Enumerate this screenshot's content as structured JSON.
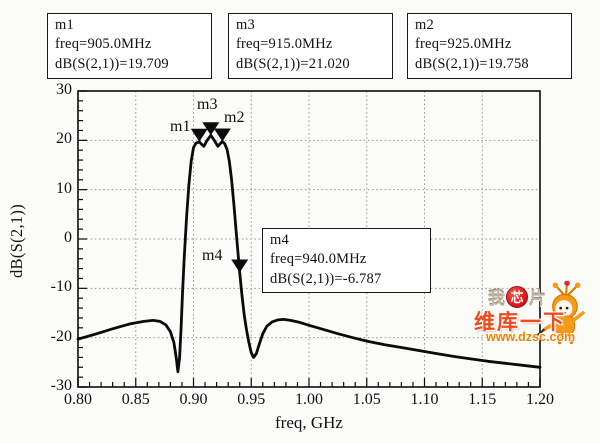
{
  "marker_boxes": {
    "m1": {
      "title": "m1",
      "freq": "freq=905.0MHz",
      "value": "dB(S(2,1))=19.709"
    },
    "m3": {
      "title": "m3",
      "freq": "freq=915.0MHz",
      "value": "dB(S(2,1))=21.020"
    },
    "m2": {
      "title": "m2",
      "freq": "freq=925.0MHz",
      "value": "dB(S(2,1))=19.758"
    },
    "m4": {
      "title": "m4",
      "freq": "freq=940.0MHz",
      "value": "dB(S(2,1))=-6.787"
    }
  },
  "watermark": {
    "row1_left": "我",
    "row1_badge": "芯",
    "row1_right": "片",
    "row2": "维库一下",
    "row3": "www.dzsc.com",
    "colors": {
      "badge_red": "#d91218",
      "title_orange_red": "#ee4b1e",
      "url_orange": "#f08200",
      "mascot_orange": "#f59b18"
    }
  },
  "chart_data": {
    "type": "line",
    "title": "",
    "xlabel": "freq, GHz",
    "ylabel": "dB(S(2,1))",
    "xlim": [
      0.8,
      1.2
    ],
    "ylim": [
      -30,
      30
    ],
    "grid": "dotted major gridlines on",
    "x_tick_labels": [
      "0.80",
      "0.85",
      "0.90",
      "0.95",
      "1.00",
      "1.05",
      "1.10",
      "1.15",
      "1.20"
    ],
    "y_tick_labels": [
      "30",
      "20",
      "10",
      "0",
      "-10",
      "-20",
      "-30"
    ],
    "x_major_step": 0.05,
    "x_minor_step": 0.01,
    "y_major_step": 10,
    "y_minor_step": 2,
    "series": [
      {
        "name": "dB(S(2,1))",
        "points": [
          [
            0.8,
            -20.3
          ],
          [
            0.815,
            -19.3
          ],
          [
            0.83,
            -18.2
          ],
          [
            0.845,
            -17.2
          ],
          [
            0.857,
            -16.7
          ],
          [
            0.865,
            -16.5
          ],
          [
            0.871,
            -16.7
          ],
          [
            0.876,
            -17.4
          ],
          [
            0.88,
            -18.8
          ],
          [
            0.883,
            -21.0
          ],
          [
            0.885,
            -24.0
          ],
          [
            0.8865,
            -26.9
          ],
          [
            0.888,
            -24.0
          ],
          [
            0.8893,
            -18.0
          ],
          [
            0.8905,
            -11.0
          ],
          [
            0.892,
            -3.5
          ],
          [
            0.894,
            4.5
          ],
          [
            0.896,
            11.0
          ],
          [
            0.898,
            15.8
          ],
          [
            0.9,
            18.5
          ],
          [
            0.902,
            19.4
          ],
          [
            0.905,
            19.709
          ],
          [
            0.907,
            19.2
          ],
          [
            0.909,
            18.8
          ],
          [
            0.9115,
            19.9
          ],
          [
            0.915,
            21.02
          ],
          [
            0.918,
            20.0
          ],
          [
            0.921,
            18.8
          ],
          [
            0.923,
            19.3
          ],
          [
            0.925,
            19.758
          ],
          [
            0.927,
            19.3
          ],
          [
            0.929,
            18.2
          ],
          [
            0.931,
            15.8
          ],
          [
            0.933,
            12.0
          ],
          [
            0.935,
            7.0
          ],
          [
            0.9375,
            0.0
          ],
          [
            0.94,
            -6.787
          ],
          [
            0.942,
            -11.5
          ],
          [
            0.944,
            -15.5
          ],
          [
            0.946,
            -18.5
          ],
          [
            0.948,
            -21.0
          ],
          [
            0.95,
            -23.0
          ],
          [
            0.952,
            -24.0
          ],
          [
            0.9545,
            -23.2
          ],
          [
            0.957,
            -21.3
          ],
          [
            0.96,
            -19.2
          ],
          [
            0.9635,
            -17.7
          ],
          [
            0.968,
            -16.8
          ],
          [
            0.973,
            -16.4
          ],
          [
            0.978,
            -16.3
          ],
          [
            0.984,
            -16.5
          ],
          [
            0.992,
            -16.9
          ],
          [
            1.0,
            -17.5
          ],
          [
            1.012,
            -18.3
          ],
          [
            1.025,
            -19.2
          ],
          [
            1.038,
            -20.0
          ],
          [
            1.05,
            -20.7
          ],
          [
            1.065,
            -21.4
          ],
          [
            1.08,
            -22.0
          ],
          [
            1.095,
            -22.6
          ],
          [
            1.11,
            -23.2
          ],
          [
            1.125,
            -23.8
          ],
          [
            1.14,
            -24.3
          ],
          [
            1.155,
            -24.8
          ],
          [
            1.17,
            -25.2
          ],
          [
            1.185,
            -25.6
          ],
          [
            1.2,
            -26.0
          ]
        ]
      }
    ],
    "markers": [
      {
        "id": "m1",
        "freq_ghz": 0.905,
        "db": 19.709
      },
      {
        "id": "m3",
        "freq_ghz": 0.915,
        "db": 21.02
      },
      {
        "id": "m2",
        "freq_ghz": 0.925,
        "db": 19.758
      },
      {
        "id": "m4",
        "freq_ghz": 0.94,
        "db": -6.787
      }
    ]
  },
  "colors": {
    "ink": "#0b0b0b",
    "grid": "#9a9a9a",
    "frame": "#1a1a1a",
    "box_bg": "#ffffff"
  }
}
